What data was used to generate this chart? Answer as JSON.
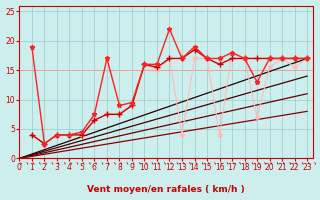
{
  "xlabel": "Vent moyen/en rafales ( km/h )",
  "xlim": [
    0,
    23.5
  ],
  "ylim": [
    0,
    26
  ],
  "yticks": [
    0,
    5,
    10,
    15,
    20,
    25
  ],
  "xticks": [
    0,
    1,
    2,
    3,
    4,
    5,
    6,
    7,
    8,
    9,
    10,
    11,
    12,
    13,
    14,
    15,
    16,
    17,
    18,
    19,
    20,
    21,
    22,
    23
  ],
  "bg_color": "#cceeed",
  "grid_color": "#99cccc",
  "line1_x": [
    1,
    2,
    3,
    4,
    5,
    6,
    7,
    8,
    9,
    10,
    11,
    12,
    13,
    14,
    15,
    16,
    17,
    18,
    19,
    20,
    21,
    22,
    23
  ],
  "line1_y": [
    19,
    2.5,
    4,
    4,
    4.5,
    7.5,
    17,
    9,
    9.5,
    16,
    16,
    22,
    17,
    19,
    17,
    17,
    18,
    17,
    13,
    17,
    17,
    17,
    17
  ],
  "line1_color": "#ff2222",
  "line1_marker": "*",
  "line1_ms": 3.5,
  "line1_lw": 1.0,
  "line2_x": [
    1,
    2,
    3,
    4,
    5,
    6,
    7,
    8,
    9,
    10,
    11,
    12,
    13,
    14,
    15,
    16,
    17,
    18,
    19,
    20,
    21,
    22,
    23
  ],
  "line2_y": [
    4,
    2.5,
    4,
    4,
    4,
    6.5,
    7.5,
    7.5,
    9,
    16,
    15.5,
    17,
    17,
    18.5,
    17,
    16,
    17,
    17,
    17,
    17,
    17,
    17,
    17
  ],
  "line2_color": "#cc0000",
  "line2_marker": "+",
  "line2_ms": 4,
  "line2_lw": 1.0,
  "diag_lines": [
    {
      "x": [
        0,
        23
      ],
      "y": [
        0,
        17
      ],
      "color": "#220000",
      "lw": 0.9
    },
    {
      "x": [
        0,
        23
      ],
      "y": [
        0,
        14
      ],
      "color": "#440000",
      "lw": 0.9
    },
    {
      "x": [
        0,
        23
      ],
      "y": [
        0,
        11
      ],
      "color": "#660000",
      "lw": 0.9
    },
    {
      "x": [
        0,
        23
      ],
      "y": [
        0,
        8
      ],
      "color": "#880000",
      "lw": 0.9
    }
  ],
  "line7_x": [
    1,
    2,
    3,
    4,
    5,
    6,
    7,
    8,
    9,
    10,
    11,
    12,
    13,
    14,
    15,
    16,
    17,
    18,
    19,
    20,
    21,
    22,
    23
  ],
  "line7_y": [
    4,
    2.5,
    4,
    4,
    4,
    6.5,
    7.5,
    7.5,
    9,
    16,
    15,
    17,
    4,
    17,
    17,
    4,
    18,
    17,
    7,
    15.5,
    17,
    15.5,
    17
  ],
  "line7_color": "#ffbbbb",
  "line7_lw": 0.8,
  "hline_y": 15,
  "hline_color": "#ff9999",
  "hline_lw": 0.7,
  "xlabel_color": "#cc0000",
  "tick_color": "#cc0000",
  "label_fontsize": 6.5,
  "tick_fontsize": 5.5,
  "spine_color": "#cc0000"
}
